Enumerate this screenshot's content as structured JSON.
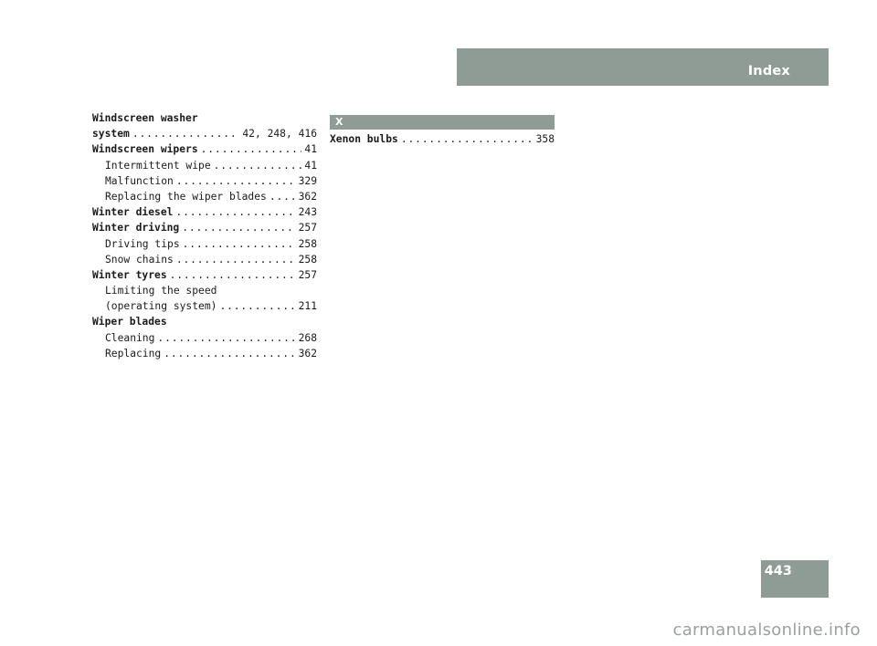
{
  "header": {
    "title": "Index"
  },
  "page_number": "443",
  "left_column": {
    "windscreen_washer": {
      "line1": "Windscreen washer",
      "line2": "system",
      "pages": "42, 248, 416"
    },
    "windscreen_wipers": {
      "term": "Windscreen wipers",
      "pages": "41"
    },
    "intermittent_wipe": {
      "term": "Intermittent wipe",
      "pages": "41"
    },
    "malfunction": {
      "term": "Malfunction",
      "pages": "329"
    },
    "replacing_wiper_blades": {
      "term": "Replacing the wiper blades",
      "pages": "362"
    },
    "winter_diesel": {
      "term": "Winter diesel",
      "pages": "243"
    },
    "winter_driving": {
      "term": "Winter driving",
      "pages": "257"
    },
    "driving_tips": {
      "term": "Driving tips",
      "pages": "258"
    },
    "snow_chains": {
      "term": "Snow chains",
      "pages": "258"
    },
    "winter_tyres": {
      "term": "Winter tyres",
      "pages": "257"
    },
    "limiting_speed": {
      "line1": "Limiting the speed",
      "line2": "(operating system)",
      "pages": "211"
    },
    "wiper_blades": {
      "term": "Wiper blades"
    },
    "cleaning": {
      "term": "Cleaning",
      "pages": "268"
    },
    "replacing": {
      "term": "Replacing",
      "pages": "362"
    }
  },
  "right_column": {
    "section_letter": "X",
    "xenon_bulbs": {
      "term": "Xenon bulbs",
      "pages": "358"
    }
  },
  "watermark": "carmanualsonline.info"
}
